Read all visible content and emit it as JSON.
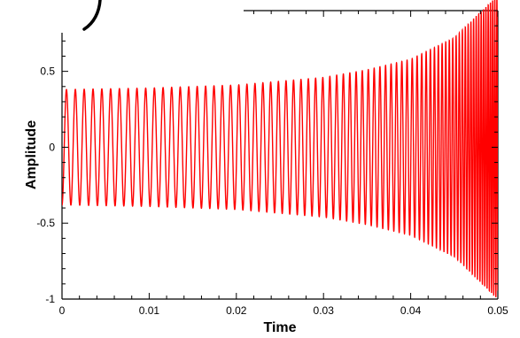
{
  "chart_data": {
    "type": "line",
    "title": "",
    "xlabel": "Time",
    "ylabel": "Amplitude",
    "xlim": [
      0,
      0.05
    ],
    "ylim": [
      -1,
      0.9
    ],
    "x_ticks": [
      0,
      0.01,
      0.02,
      0.03,
      0.04,
      0.05
    ],
    "x_tick_labels": [
      "0",
      "0.01",
      "0.02",
      "0.03",
      "0.04",
      "0.05"
    ],
    "y_ticks": [
      -1,
      -0.5,
      0,
      0.5
    ],
    "y_tick_labels": [
      "-1",
      "-0.5",
      "0",
      "0.5"
    ],
    "grid": false,
    "legend": "none",
    "series": [
      {
        "color": "#ff0000",
        "function": "chirp",
        "amplitude_envelope": {
          "t": [
            0,
            0.01,
            0.02,
            0.03,
            0.035,
            0.04,
            0.045,
            0.05
          ],
          "a": [
            0.38,
            0.39,
            0.41,
            0.46,
            0.51,
            0.58,
            0.72,
            1.0
          ]
        },
        "frequency_hz": {
          "t": [
            0,
            0.01,
            0.02,
            0.03,
            0.04,
            0.045,
            0.05
          ],
          "f": [
            980,
            1000,
            1060,
            1220,
            1700,
            2600,
            4200
          ]
        },
        "t_start": 0,
        "t_end": 0.05,
        "phase_at_start_deg": 180
      }
    ]
  }
}
